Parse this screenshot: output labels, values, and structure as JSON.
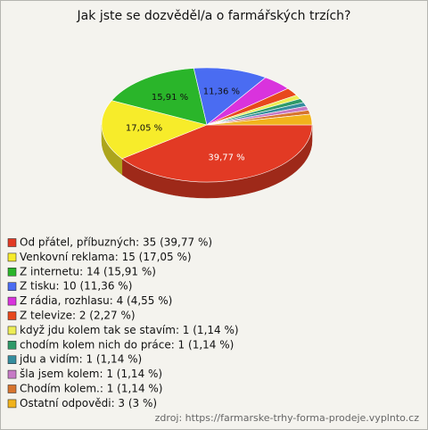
{
  "chart_data": {
    "type": "pie",
    "title": "Jak jste se dozvěděl/a o farmářských trzích?",
    "categories": [
      "Od přátel, příbuzných: 35 (39,77 %)",
      "Venkovní reklama: 15 (17,05 %)",
      "Z internetu: 14 (15,91 %)",
      "Z tisku: 10 (11,36 %)",
      "Z rádia, rozhlasu: 4 (4,55 %)",
      "Z televize: 2 (2,27 %)",
      "když jdu kolem tak se stavím: 1 (1,14 %)",
      "chodím kolem nich do práce: 1 (1,14 %)",
      "jdu a vidím: 1 (1,14 %)",
      "šla jsem kolem: 1 (1,14 %)",
      "Chodím kolem.: 1 (1,14 %)",
      "Ostatní odpovědi: 3 (3 %)"
    ],
    "values": [
      39.77,
      17.05,
      15.91,
      11.36,
      4.55,
      2.27,
      1.14,
      1.14,
      1.14,
      1.14,
      1.14,
      3
    ],
    "value_labels": [
      "39,77 %",
      "17,05 %",
      "15,91 %",
      "11,36 %",
      null,
      null,
      null,
      null,
      null,
      null,
      null,
      null
    ],
    "colors": [
      "#e23a24",
      "#f7ec2a",
      "#2ab52a",
      "#4a6cf2",
      "#d933dd",
      "#e8481c",
      "#eded55",
      "#2f9a68",
      "#348d9e",
      "#c77ac6",
      "#d7742e",
      "#f1b31c"
    ],
    "source": "zdroj: https://farmarske-trhy-forma-prodeje.vyplnto.cz"
  }
}
